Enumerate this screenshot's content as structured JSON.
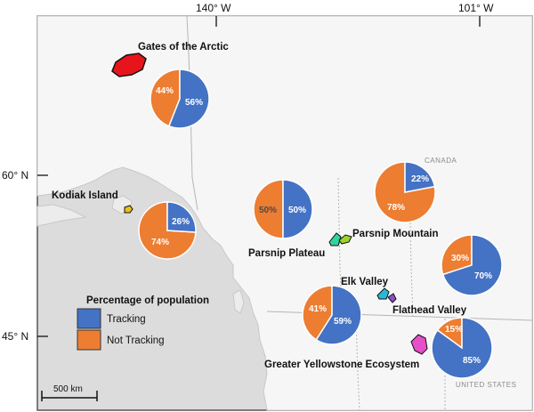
{
  "axes": {
    "lon_left": "140° W",
    "lon_right": "101° W",
    "lat_top": "60° N",
    "lat_bottom": "45° N"
  },
  "countries": {
    "canada": "CANADA",
    "united_states": "UNITED STATES"
  },
  "legend": {
    "title": "Percentage of population",
    "tracking_label": "Tracking",
    "not_tracking_label": "Not Tracking",
    "tracking_color": "#4472c4",
    "not_tracking_color": "#ed7d31"
  },
  "scale_bar": {
    "label": "500 km"
  },
  "polygon_colors": {
    "gates_of_the_arctic": "#e8141c",
    "kodiak_island": "#e8c21a",
    "parsnip_plateau": "#2fd4a0",
    "parsnip_mountain": "#9ad42a",
    "elk_valley": "#2ab8d8",
    "flathead_valley": "#8b4fd0",
    "greater_yellowstone": "#e64fc8"
  },
  "places": [
    {
      "name": "Gates of the Arctic",
      "tracking": 56,
      "not_tracking": 44,
      "tracking_label": "56%",
      "not_tracking_label": "44%"
    },
    {
      "name": "Kodiak Island",
      "tracking": 26,
      "not_tracking": 74,
      "tracking_label": "26%",
      "not_tracking_label": "74%"
    },
    {
      "name": "Parsnip Plateau",
      "tracking": 50,
      "not_tracking": 50,
      "tracking_label": "50%",
      "not_tracking_label": "50%"
    },
    {
      "name": "Parsnip Mountain",
      "tracking": 22,
      "not_tracking": 78,
      "tracking_label": "22%",
      "not_tracking_label": "78%"
    },
    {
      "name": "Elk Valley",
      "tracking": 70,
      "not_tracking": 30,
      "tracking_label": "70%",
      "not_tracking_label": "30%"
    },
    {
      "name": "Flathead Valley",
      "tracking": 59,
      "not_tracking": 41,
      "tracking_label": "59%",
      "not_tracking_label": "41%"
    },
    {
      "name": "Greater Yellowstone Ecosystem",
      "tracking": 85,
      "not_tracking": 15,
      "tracking_label": "85%",
      "not_tracking_label": "15%"
    }
  ]
}
